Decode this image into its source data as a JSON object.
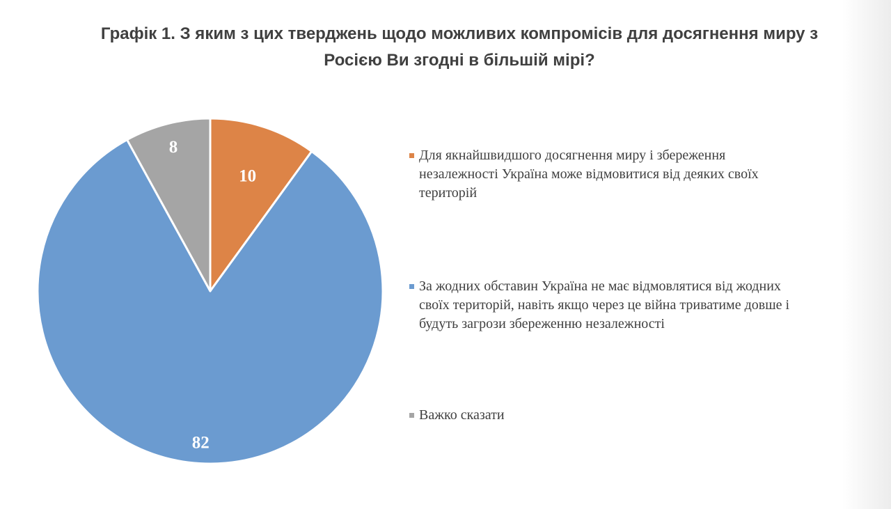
{
  "chart_data": {
    "type": "pie",
    "title_line1": "Графік 1. З яким з цих тверджень щодо можливих компромісів для досягнення миру з",
    "title_line2": "Росією Ви згодні в більшій мірі?",
    "slices": [
      {
        "name": "Для якнайшвидшого досягнення миру і збереження незалежності Україна може відмовитися від деяких своїх територій",
        "value": 10,
        "label": "10",
        "color": "#dd8447"
      },
      {
        "name": "За жодних обставин Україна не має відмовлятися від жодних своїх територій, навіть якщо через це війна триватиме довше і будуть загрози збереженню незалежності",
        "value": 82,
        "label": "82",
        "color": "#6b9bd0"
      },
      {
        "name": "Важко сказати",
        "value": 8,
        "label": "8",
        "color": "#a5a5a5"
      }
    ],
    "legend_position": "right"
  }
}
